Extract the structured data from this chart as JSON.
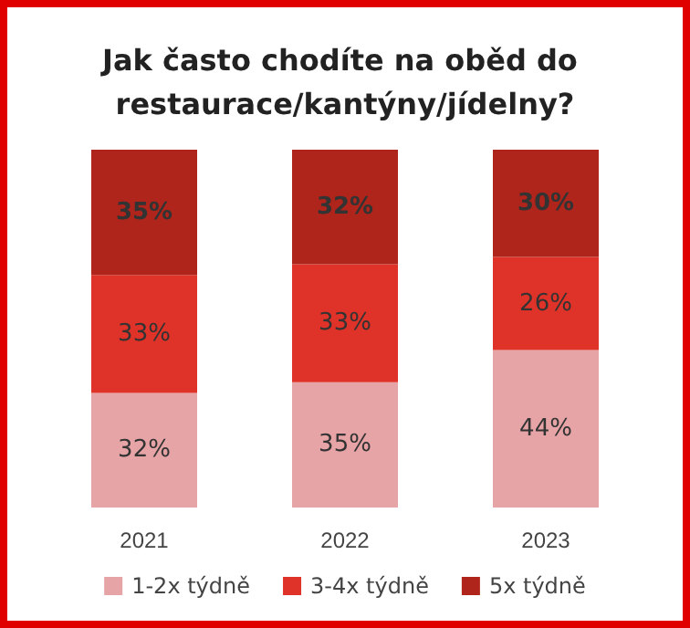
{
  "chart_data": {
    "type": "bar",
    "title": "Jak často chodíte na oběd do restaurace/kantýny/jídelny?",
    "categories": [
      "2021",
      "2022",
      "2023"
    ],
    "stacked": true,
    "legend": "bottom",
    "series": [
      {
        "name": "1-2x týdně",
        "color": "#e6a4a6",
        "values": [
          32,
          35,
          44
        ],
        "value_labels": [
          "32%",
          "35%",
          "44%"
        ]
      },
      {
        "name": "3-4x týdně",
        "color": "#df3228",
        "values": [
          33,
          33,
          26
        ],
        "value_labels": [
          "33%",
          "33%",
          "26%"
        ]
      },
      {
        "name": "5x týdně",
        "color": "#b0251b",
        "values": [
          35,
          32,
          30
        ],
        "value_labels": [
          "35%",
          "32%",
          "30%"
        ]
      }
    ]
  }
}
